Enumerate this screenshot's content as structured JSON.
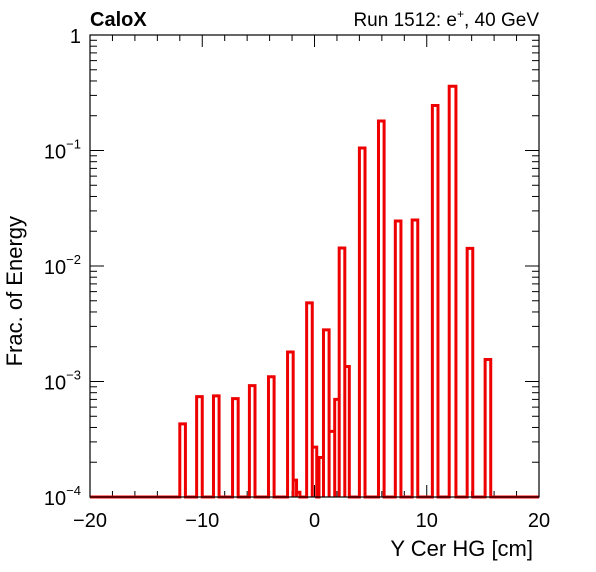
{
  "header": {
    "experiment": "CaloX",
    "run_prefix": "Run 1512: e",
    "run_sup": "+",
    "run_suffix": ", 40 GeV"
  },
  "chart_data": {
    "type": "histogram",
    "xlabel": "Y Cer HG [cm]",
    "ylabel": "Frac. of Energy",
    "xlim": [
      -20,
      20
    ],
    "ylim": [
      0.0001,
      1
    ],
    "yscale": "log",
    "x_ticks": [
      "−20",
      "−10",
      "0",
      "10",
      "20"
    ],
    "y_ticks": [
      {
        "base": "10",
        "exp": "−4",
        "value": 0.0001
      },
      {
        "base": "10",
        "exp": "−3",
        "value": 0.001
      },
      {
        "base": "10",
        "exp": "−2",
        "value": 0.01
      },
      {
        "base": "10",
        "exp": "−1",
        "value": 0.1
      },
      {
        "base": "1",
        "exp": "",
        "value": 1
      }
    ],
    "line_color": "#ee0000",
    "bins": [
      {
        "x": [
          -12.0,
          -11.5
        ],
        "y": 0.00043
      },
      {
        "x": [
          -10.5,
          -10.0
        ],
        "y": 0.00074
      },
      {
        "x": [
          -9.0,
          -8.5
        ],
        "y": 0.00075
      },
      {
        "x": [
          -7.3,
          -6.8
        ],
        "y": 0.00071
      },
      {
        "x": [
          -5.8,
          -5.3
        ],
        "y": 0.00092
      },
      {
        "x": [
          -4.1,
          -3.6
        ],
        "y": 0.0011
      },
      {
        "x": [
          -2.4,
          -1.9
        ],
        "y": 0.0018
      },
      {
        "x": [
          -1.9,
          -1.6
        ],
        "y": 0.00014
      },
      {
        "x": [
          -1.6,
          -1.3
        ],
        "y": 0.00011
      },
      {
        "x": [
          -0.7,
          -0.2
        ],
        "y": 0.0048
      },
      {
        "x": [
          -0.2,
          0.2
        ],
        "y": 0.00027
      },
      {
        "x": [
          0.4,
          0.8
        ],
        "y": 0.00022
      },
      {
        "x": [
          0.8,
          1.3
        ],
        "y": 0.0028
      },
      {
        "x": [
          1.3,
          1.8
        ],
        "y": 0.00037
      },
      {
        "x": [
          1.8,
          2.2
        ],
        "y": 0.0007
      },
      {
        "x": [
          2.2,
          2.7
        ],
        "y": 0.0143
      },
      {
        "x": [
          2.7,
          3.1
        ],
        "y": 0.00135
      },
      {
        "x": [
          4.0,
          4.5
        ],
        "y": 0.105
      },
      {
        "x": [
          5.7,
          6.2
        ],
        "y": 0.18
      },
      {
        "x": [
          7.2,
          7.7
        ],
        "y": 0.0245
      },
      {
        "x": [
          8.7,
          9.2
        ],
        "y": 0.025
      },
      {
        "x": [
          10.5,
          11.0
        ],
        "y": 0.245
      },
      {
        "x": [
          12.0,
          12.6
        ],
        "y": 0.36
      },
      {
        "x": [
          13.6,
          14.1
        ],
        "y": 0.0142
      },
      {
        "x": [
          15.2,
          15.7
        ],
        "y": 0.00155
      }
    ]
  }
}
